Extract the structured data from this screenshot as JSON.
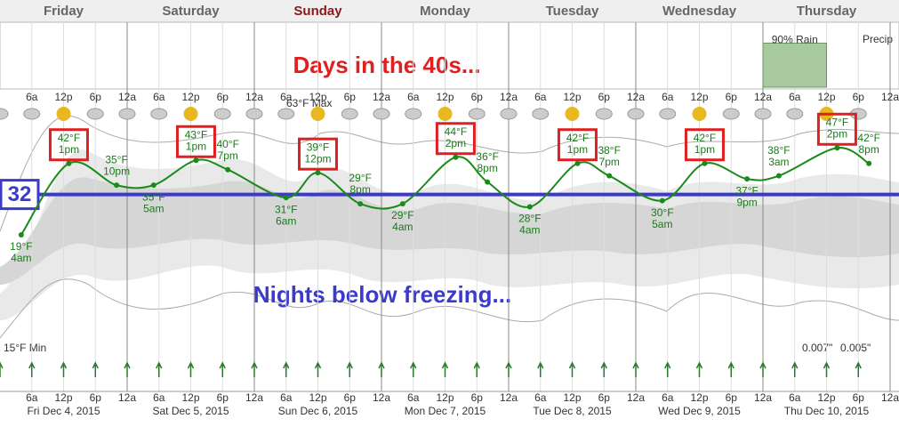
{
  "chart_data": {
    "type": "line",
    "days": [
      "Friday",
      "Saturday",
      "Sunday",
      "Monday",
      "Tuesday",
      "Wednesday",
      "Thursday"
    ],
    "current_day": 2,
    "hour_labels": [
      "6a",
      "12p",
      "6p",
      "12a"
    ],
    "dates": [
      "Fri Dec 4, 2015",
      "Sat Dec 5, 2015",
      "Sun Dec 6, 2015",
      "Mon Dec 7, 2015",
      "Tue Dec 8, 2015",
      "Wed Dec 9, 2015",
      "Thu Dec 10, 2015"
    ],
    "annotations": [
      "Days in the 40s...",
      "Nights below freezing..."
    ],
    "freezing": {
      "value": 32,
      "color": "#3a3acc"
    },
    "max_label": "63°F Max",
    "min_label": "15°F Min",
    "precip_label": "Precip",
    "rain_label": "90% Rain",
    "rain_value": 90,
    "precip_amounts": [
      "0.007\"",
      "0.005\""
    ],
    "series": [
      {
        "name": "Temperature",
        "color": "#1a8a1a",
        "x": [
          4,
          13,
          22,
          29,
          37,
          43,
          54,
          60,
          68,
          76,
          86,
          92,
          100,
          109,
          115,
          125,
          133,
          141,
          147,
          158,
          164
        ],
        "values": [
          19,
          42,
          35,
          35,
          43,
          40,
          31,
          39,
          29,
          29,
          44,
          36,
          28,
          42,
          38,
          30,
          42,
          37,
          38,
          47,
          42
        ],
        "value_labels": [
          "19°F",
          "42°F",
          "35°F",
          "35°F",
          "43°F",
          "40°F",
          "31°F",
          "39°F",
          "29°F",
          "29°F",
          "44°F",
          "36°F",
          "28°F",
          "42°F",
          "38°F",
          "30°F",
          "42°F",
          "37°F",
          "38°F",
          "47°F",
          "42°F"
        ],
        "times": [
          "4am",
          "1pm",
          "10pm",
          "5am",
          "1pm",
          "7pm",
          "6am",
          "12pm",
          "8pm",
          "4am",
          "2pm",
          "8pm",
          "4am",
          "1pm",
          "7pm",
          "5am",
          "1pm",
          "9pm",
          "3am",
          "2pm",
          "8pm"
        ],
        "boxed": [
          false,
          true,
          false,
          false,
          true,
          false,
          false,
          true,
          false,
          false,
          true,
          false,
          false,
          true,
          false,
          false,
          true,
          false,
          false,
          true,
          false
        ]
      }
    ],
    "xlim": [
      0,
      168
    ],
    "ylim": [
      -20,
      66
    ]
  }
}
